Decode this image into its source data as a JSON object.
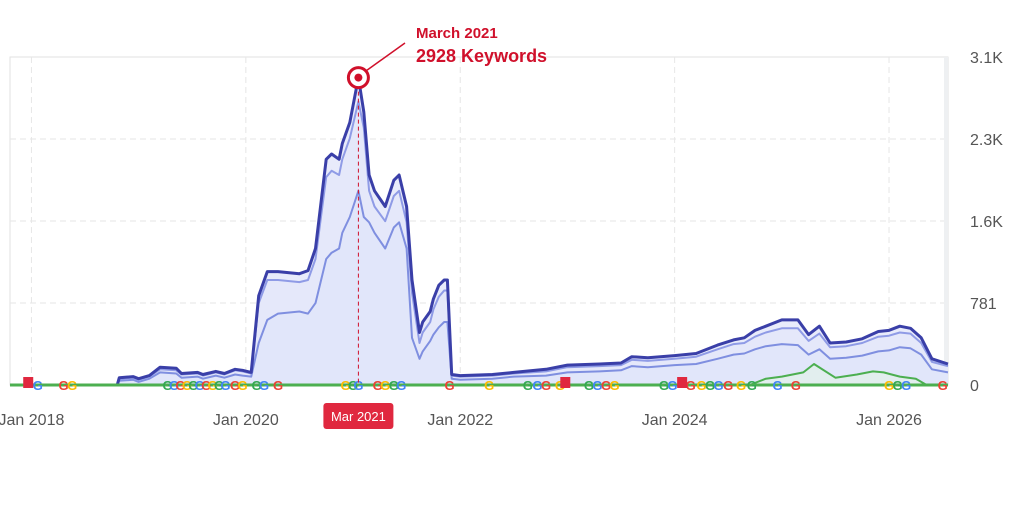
{
  "chart_data": {
    "type": "area",
    "title": "",
    "xlabel": "",
    "ylabel": "",
    "x_ticks": [
      "Jan 2018",
      "Jan 2020",
      "Jan 2022",
      "Jan 2024",
      "Jan 2026"
    ],
    "y_ticks": [
      "0",
      "781",
      "1.6K",
      "2.3K",
      "3.1K"
    ],
    "ylim": [
      0,
      3124
    ],
    "xlim": [
      2017.8,
      2026.55
    ],
    "grid": true,
    "legend": "none",
    "series": [
      {
        "color": "#3a3fa8",
        "x": [
          2017.8,
          2018.8,
          2018.82,
          2018.95,
          2019.0,
          2019.1,
          2019.2,
          2019.35,
          2019.4,
          2019.55,
          2019.6,
          2019.72,
          2019.8,
          2019.9,
          2019.97,
          2020.05,
          2020.12,
          2020.2,
          2020.3,
          2020.5,
          2020.58,
          2020.65,
          2020.75,
          2020.8,
          2020.87,
          2020.9,
          2020.97,
          2021.05,
          2021.1,
          2021.15,
          2021.2,
          2021.3,
          2021.38,
          2021.43,
          2021.5,
          2021.55,
          2021.62,
          2021.65,
          2021.72,
          2021.75,
          2021.8,
          2021.85,
          2021.88,
          2021.92,
          2022.0,
          2022.3,
          2022.5,
          2022.8,
          2023.0,
          2023.3,
          2023.5,
          2023.6,
          2023.75,
          2024.0,
          2024.2,
          2024.4,
          2024.55,
          2024.65,
          2024.75,
          2024.85,
          2025.0,
          2025.15,
          2025.25,
          2025.35,
          2025.45,
          2025.6,
          2025.75,
          2025.9,
          2026.0,
          2026.1,
          2026.2,
          2026.3,
          2026.4,
          2026.55
        ],
        "values": [
          0,
          0,
          70,
          80,
          60,
          90,
          170,
          160,
          110,
          120,
          100,
          130,
          110,
          150,
          140,
          120,
          850,
          1080,
          1080,
          1060,
          1090,
          1300,
          2150,
          2200,
          2150,
          2300,
          2500,
          2928,
          2600,
          2000,
          1850,
          1700,
          1950,
          2000,
          1700,
          1000,
          500,
          600,
          700,
          820,
          950,
          1000,
          1000,
          100,
          90,
          100,
          120,
          150,
          190,
          200,
          210,
          270,
          260,
          280,
          300,
          380,
          430,
          450,
          520,
          560,
          620,
          620,
          480,
          560,
          400,
          410,
          440,
          510,
          520,
          560,
          540,
          450,
          250,
          200
        ]
      },
      {
        "color": "#8f9be6",
        "x": [
          2017.8,
          2018.8,
          2018.82,
          2018.95,
          2019.0,
          2019.1,
          2019.2,
          2019.35,
          2019.4,
          2019.55,
          2019.6,
          2019.72,
          2019.8,
          2019.9,
          2019.97,
          2020.05,
          2020.12,
          2020.2,
          2020.3,
          2020.5,
          2020.58,
          2020.65,
          2020.75,
          2020.8,
          2020.87,
          2020.9,
          2020.97,
          2021.05,
          2021.1,
          2021.15,
          2021.2,
          2021.3,
          2021.38,
          2021.43,
          2021.5,
          2021.55,
          2021.62,
          2021.65,
          2021.72,
          2021.75,
          2021.8,
          2021.85,
          2021.88,
          2021.92,
          2022.0,
          2022.3,
          2022.5,
          2022.8,
          2023.0,
          2023.3,
          2023.5,
          2023.6,
          2023.75,
          2024.0,
          2024.2,
          2024.4,
          2024.55,
          2024.65,
          2024.75,
          2024.85,
          2025.0,
          2025.15,
          2025.25,
          2025.35,
          2025.45,
          2025.6,
          2025.75,
          2025.9,
          2026.0,
          2026.1,
          2026.2,
          2026.3,
          2026.4,
          2026.55
        ],
        "values": [
          0,
          0,
          60,
          70,
          50,
          80,
          150,
          140,
          100,
          110,
          90,
          120,
          100,
          140,
          130,
          110,
          780,
          1000,
          1000,
          980,
          1000,
          1200,
          1980,
          2040,
          2000,
          2150,
          2350,
          2700,
          2450,
          1850,
          1700,
          1560,
          1800,
          1850,
          1550,
          880,
          400,
          500,
          600,
          720,
          840,
          900,
          900,
          90,
          80,
          90,
          110,
          130,
          170,
          180,
          190,
          240,
          230,
          250,
          270,
          340,
          390,
          400,
          460,
          500,
          540,
          540,
          420,
          490,
          360,
          370,
          400,
          460,
          470,
          500,
          490,
          400,
          220,
          180
        ]
      },
      {
        "color": "#7f8fe0",
        "x": [
          2017.8,
          2018.8,
          2018.82,
          2018.95,
          2019.0,
          2019.1,
          2019.2,
          2019.35,
          2019.4,
          2019.55,
          2019.6,
          2019.72,
          2019.8,
          2019.9,
          2019.97,
          2020.05,
          2020.12,
          2020.2,
          2020.3,
          2020.5,
          2020.58,
          2020.65,
          2020.75,
          2020.8,
          2020.87,
          2020.9,
          2020.97,
          2021.05,
          2021.1,
          2021.15,
          2021.2,
          2021.3,
          2021.38,
          2021.43,
          2021.5,
          2021.55,
          2021.62,
          2021.65,
          2021.72,
          2021.75,
          2021.8,
          2021.85,
          2021.88,
          2021.92,
          2022.0,
          2022.3,
          2022.5,
          2022.8,
          2023.0,
          2023.3,
          2023.5,
          2023.6,
          2023.75,
          2024.0,
          2024.2,
          2024.4,
          2024.55,
          2024.65,
          2024.75,
          2024.85,
          2025.0,
          2025.15,
          2025.25,
          2025.35,
          2025.45,
          2025.6,
          2025.75,
          2025.9,
          2026.0,
          2026.1,
          2026.2,
          2026.3,
          2026.4,
          2026.55
        ],
        "values": [
          0,
          0,
          40,
          50,
          30,
          60,
          120,
          110,
          70,
          80,
          60,
          90,
          70,
          100,
          90,
          80,
          400,
          620,
          680,
          700,
          680,
          780,
          1200,
          1260,
          1300,
          1450,
          1600,
          1850,
          1600,
          1550,
          1450,
          1300,
          1500,
          1550,
          1300,
          450,
          250,
          320,
          420,
          480,
          550,
          600,
          600,
          60,
          50,
          60,
          80,
          90,
          120,
          130,
          140,
          180,
          170,
          190,
          200,
          250,
          290,
          300,
          340,
          370,
          390,
          380,
          290,
          340,
          250,
          260,
          280,
          320,
          330,
          360,
          350,
          290,
          150,
          120
        ]
      },
      {
        "color": "#4caf50",
        "x": [
          2017.8,
          2024.7,
          2024.85,
          2025.0,
          2025.1,
          2025.2,
          2025.3,
          2025.5,
          2025.7,
          2025.85,
          2025.95,
          2026.1,
          2026.25,
          2026.35,
          2026.55
        ],
        "values": [
          0,
          0,
          60,
          80,
          100,
          120,
          200,
          70,
          100,
          130,
          120,
          80,
          60,
          0,
          0
        ]
      }
    ],
    "annotation": {
      "title": "March 2021",
      "value": "2928 Keywords",
      "x": 2021.05,
      "y": 2928
    },
    "hover_label": "Mar 2021",
    "hover_x": 2021.05,
    "event_markers": {
      "google_updates": [
        2018.06,
        2018.3,
        2018.38,
        2019.27,
        2019.33,
        2019.39,
        2019.45,
        2019.51,
        2019.57,
        2019.63,
        2019.69,
        2019.75,
        2019.81,
        2019.9,
        2019.97,
        2020.1,
        2020.17,
        2020.3,
        2020.93,
        2021.0,
        2021.05,
        2021.23,
        2021.3,
        2021.38,
        2021.45,
        2021.9,
        2022.27,
        2022.63,
        2022.72,
        2022.8,
        2022.93,
        2023.2,
        2023.28,
        2023.36,
        2023.44,
        2023.9,
        2023.98,
        2024.15,
        2024.25,
        2024.33,
        2024.41,
        2024.5,
        2024.62,
        2024.72,
        2024.96,
        2025.13,
        2026.0,
        2026.08,
        2026.16,
        2026.5
      ],
      "flags": [
        2017.97,
        2022.98,
        2024.07
      ]
    },
    "colors": {
      "accent": "#d0102b",
      "primary_line": "#3a3fa8",
      "fill": "#e9ecfb",
      "google_blue": "#4285f4",
      "google_red": "#ea4335",
      "google_yellow": "#fbbc05",
      "google_green": "#34a853"
    }
  }
}
